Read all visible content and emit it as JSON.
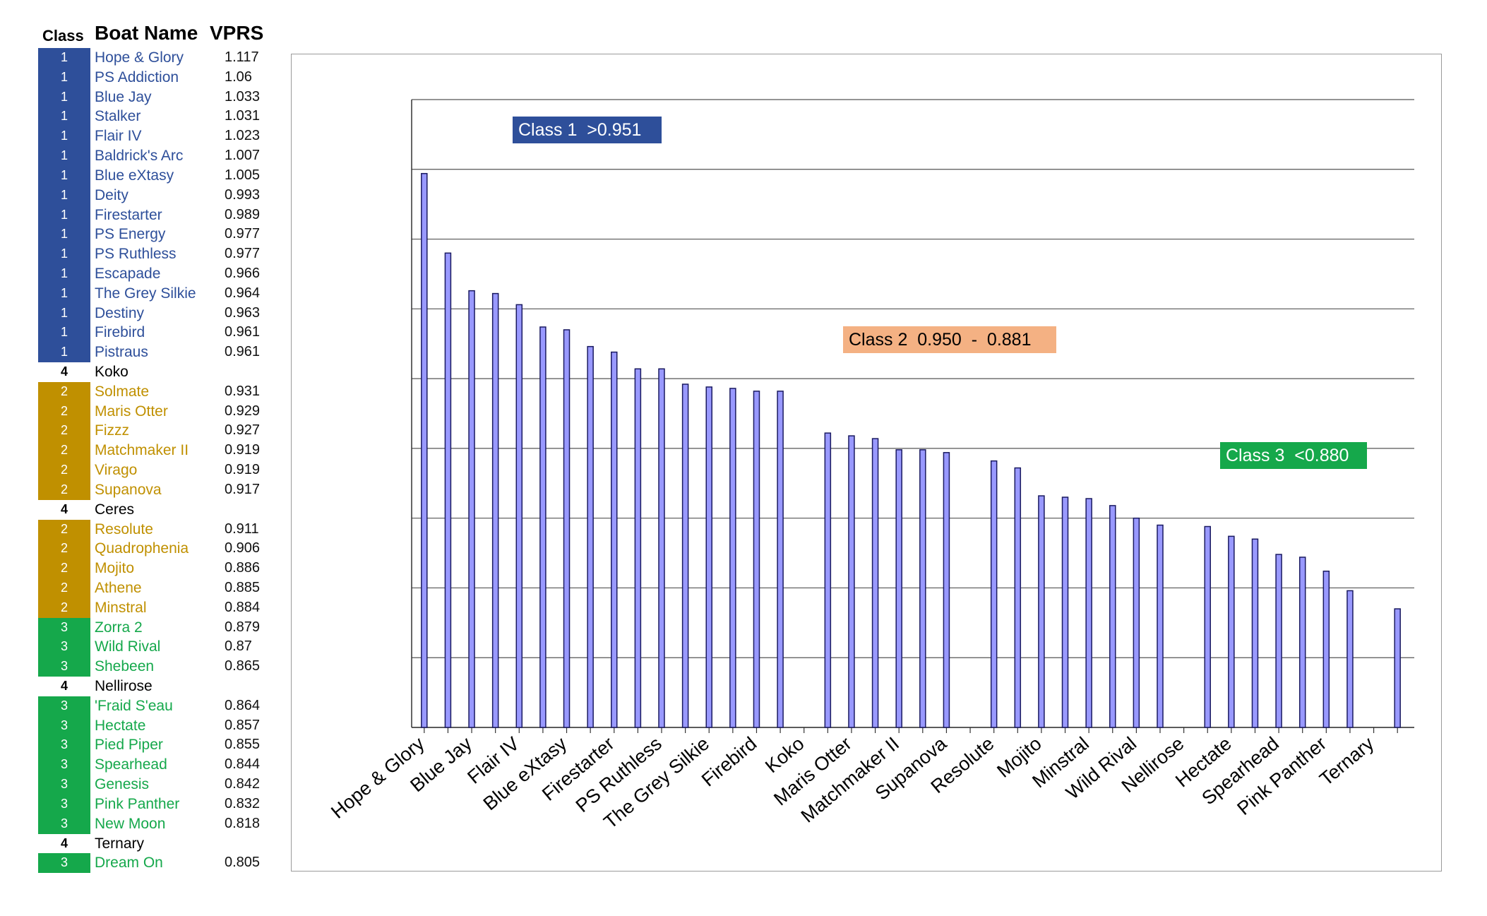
{
  "table": {
    "headers": {
      "class": "Class",
      "name": "Boat Name",
      "vprs": "VPRS"
    },
    "class_colors": {
      "1": "#2e4f9a",
      "2": "#c09000",
      "3": "#15a84b",
      "4": "#ffffff"
    },
    "text_colors": {
      "1": "#2e4f9a",
      "2": "#c09000",
      "3": "#15a84b",
      "4": "#000000"
    },
    "rows": [
      {
        "class": "1",
        "name": "Hope & Glory",
        "vprs": "1.117"
      },
      {
        "class": "1",
        "name": "PS Addiction",
        "vprs": "1.06"
      },
      {
        "class": "1",
        "name": "Blue Jay",
        "vprs": "1.033"
      },
      {
        "class": "1",
        "name": "Stalker",
        "vprs": "1.031"
      },
      {
        "class": "1",
        "name": "Flair IV",
        "vprs": "1.023"
      },
      {
        "class": "1",
        "name": "Baldrick's Arc",
        "vprs": "1.007"
      },
      {
        "class": "1",
        "name": "Blue eXtasy",
        "vprs": "1.005"
      },
      {
        "class": "1",
        "name": "Deity",
        "vprs": "0.993"
      },
      {
        "class": "1",
        "name": "Firestarter",
        "vprs": "0.989"
      },
      {
        "class": "1",
        "name": "PS Energy",
        "vprs": "0.977"
      },
      {
        "class": "1",
        "name": "PS Ruthless",
        "vprs": "0.977"
      },
      {
        "class": "1",
        "name": "Escapade",
        "vprs": "0.966"
      },
      {
        "class": "1",
        "name": "The Grey Silkie",
        "vprs": "0.964"
      },
      {
        "class": "1",
        "name": "Destiny",
        "vprs": "0.963"
      },
      {
        "class": "1",
        "name": "Firebird",
        "vprs": "0.961"
      },
      {
        "class": "1",
        "name": "Pistraus",
        "vprs": "0.961"
      },
      {
        "class": "4",
        "name": "Koko",
        "vprs": ""
      },
      {
        "class": "2",
        "name": "Solmate",
        "vprs": "0.931"
      },
      {
        "class": "2",
        "name": "Maris Otter",
        "vprs": "0.929"
      },
      {
        "class": "2",
        "name": "Fizzz",
        "vprs": "0.927"
      },
      {
        "class": "2",
        "name": "Matchmaker II",
        "vprs": "0.919"
      },
      {
        "class": "2",
        "name": "Virago",
        "vprs": "0.919"
      },
      {
        "class": "2",
        "name": "Supanova",
        "vprs": "0.917"
      },
      {
        "class": "4",
        "name": "Ceres",
        "vprs": ""
      },
      {
        "class": "2",
        "name": "Resolute",
        "vprs": "0.911"
      },
      {
        "class": "2",
        "name": "Quadrophenia",
        "vprs": "0.906"
      },
      {
        "class": "2",
        "name": "Mojito",
        "vprs": "0.886"
      },
      {
        "class": "2",
        "name": "Athene",
        "vprs": "0.885"
      },
      {
        "class": "2",
        "name": "Minstral",
        "vprs": "0.884"
      },
      {
        "class": "3",
        "name": "Zorra 2",
        "vprs": "0.879"
      },
      {
        "class": "3",
        "name": "Wild Rival",
        "vprs": "0.87"
      },
      {
        "class": "3",
        "name": "Shebeen",
        "vprs": "0.865"
      },
      {
        "class": "4",
        "name": "Nellirose",
        "vprs": ""
      },
      {
        "class": "3",
        "name": "'Fraid S'eau",
        "vprs": "0.864"
      },
      {
        "class": "3",
        "name": "Hectate",
        "vprs": "0.857"
      },
      {
        "class": "3",
        "name": "Pied Piper",
        "vprs": "0.855"
      },
      {
        "class": "3",
        "name": "Spearhead",
        "vprs": "0.844"
      },
      {
        "class": "3",
        "name": "Genesis",
        "vprs": "0.842"
      },
      {
        "class": "3",
        "name": "Pink Panther",
        "vprs": "0.832"
      },
      {
        "class": "3",
        "name": "New Moon",
        "vprs": "0.818"
      },
      {
        "class": "4",
        "name": "Ternary",
        "vprs": ""
      },
      {
        "class": "3",
        "name": "Dream On",
        "vprs": "0.805"
      }
    ]
  },
  "annotations": [
    {
      "text": "Class 1  >0.951",
      "bg": "#2e4f9a",
      "fg": "#ffffff"
    },
    {
      "text": "Class 2  0.950  -  0.881",
      "bg": "#f4b183",
      "fg": "#000000"
    },
    {
      "text": "Class 3  <0.880",
      "bg": "#15a84b",
      "fg": "#ffffff"
    }
  ],
  "chart_data": {
    "type": "bar",
    "title": "",
    "xlabel": "",
    "ylabel": "",
    "ylim": [
      0.72,
      1.17
    ],
    "grid": true,
    "bar_color": "#9999ff",
    "categories": [
      "Hope & Glory",
      "PS Addiction",
      "Blue Jay",
      "Stalker",
      "Flair IV",
      "Baldrick's Arc",
      "Blue eXtasy",
      "Deity",
      "Firestarter",
      "PS Energy",
      "PS Ruthless",
      "Escapade",
      "The Grey Silkie",
      "Destiny",
      "Firebird",
      "Pistraus",
      "Koko",
      "Solmate",
      "Maris Otter",
      "Fizzz",
      "Matchmaker II",
      "Virago",
      "Supanova",
      "Ceres",
      "Resolute",
      "Quadrophenia",
      "Mojito",
      "Athene",
      "Minstral",
      "Zorra 2",
      "Wild Rival",
      "Shebeen",
      "Nellirose",
      "'Fraid S'eau",
      "Hectate",
      "Pied Piper",
      "Spearhead",
      "Genesis",
      "Pink Panther",
      "New Moon",
      "Ternary",
      "Dream On"
    ],
    "values": [
      1.117,
      1.06,
      1.033,
      1.031,
      1.023,
      1.007,
      1.005,
      0.993,
      0.989,
      0.977,
      0.977,
      0.966,
      0.964,
      0.963,
      0.961,
      0.961,
      null,
      0.931,
      0.929,
      0.927,
      0.919,
      0.919,
      0.917,
      null,
      0.911,
      0.906,
      0.886,
      0.885,
      0.884,
      0.879,
      0.87,
      0.865,
      null,
      0.864,
      0.857,
      0.855,
      0.844,
      0.842,
      0.832,
      0.818,
      null,
      0.805
    ],
    "tick_labels": [
      "Hope & Glory",
      "Blue Jay",
      "Flair IV",
      "Blue eXtasy",
      "Firestarter",
      "PS Ruthless",
      "The Grey Silkie",
      "Firebird",
      "Koko",
      "Maris Otter",
      "Matchmaker II",
      "Supanova",
      "Resolute",
      "Mojito",
      "Minstral",
      "Wild Rival",
      "Nellirose",
      "Hectate",
      "Spearhead",
      "Pink Panther",
      "Ternary"
    ]
  }
}
